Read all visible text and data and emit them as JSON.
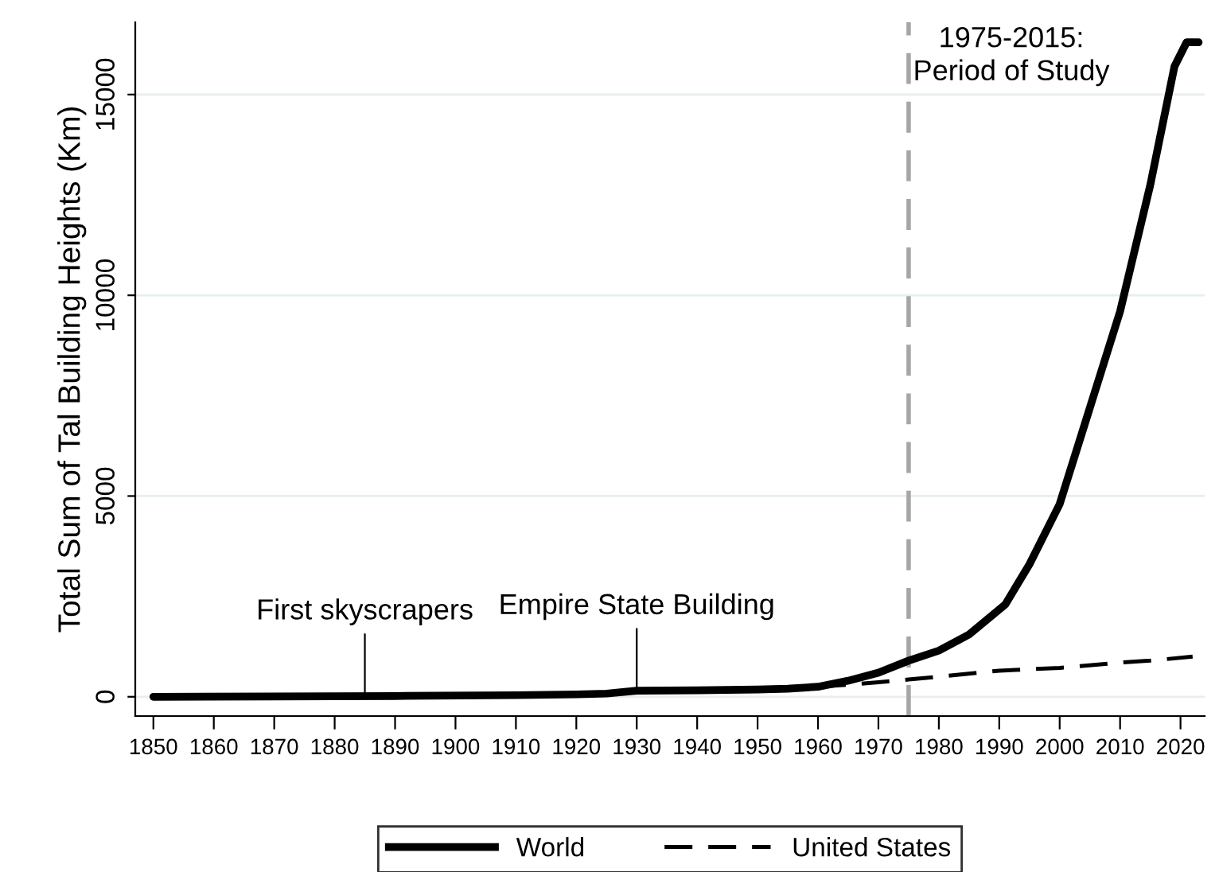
{
  "chart_data": {
    "type": "line",
    "ylabel": "Total Sum of Tal Building Heights (Km)",
    "series": [
      {
        "name": "World",
        "color": "#000000",
        "line_style": "solid",
        "x": [
          1850,
          1870,
          1890,
          1910,
          1920,
          1925,
          1930,
          1940,
          1950,
          1955,
          1960,
          1965,
          1970,
          1975,
          1980,
          1985,
          1991,
          1995,
          2000,
          2005,
          2010,
          2015,
          2019,
          2021,
          2023
        ],
        "values": [
          0,
          10,
          20,
          40,
          60,
          80,
          150,
          160,
          180,
          200,
          250,
          400,
          600,
          900,
          1150,
          1550,
          2300,
          3300,
          4800,
          7200,
          9600,
          12750,
          15700,
          16300,
          16300
        ]
      },
      {
        "name": "United States",
        "color": "#000000",
        "line_style": "dashed",
        "x": [
          1960,
          1965,
          1970,
          1975,
          1980,
          1990,
          2000,
          2010,
          2015,
          2022
        ],
        "values": [
          250,
          300,
          360,
          430,
          500,
          650,
          720,
          850,
          900,
          1000
        ]
      }
    ],
    "xlim": [
      1847,
      2024
    ],
    "ylim": [
      -480,
      16800
    ],
    "xticks": [
      1850,
      1860,
      1870,
      1880,
      1890,
      1900,
      1910,
      1920,
      1930,
      1940,
      1950,
      1960,
      1970,
      1980,
      1990,
      2000,
      2010,
      2020
    ],
    "yticks": [
      0,
      5000,
      10000,
      15000
    ],
    "grid": "y",
    "legend": "bottom",
    "ref_lines": [
      {
        "axis": "x",
        "value": 1975,
        "label": "1975-2015:\nPeriod of Study",
        "color": "#a6a6a6",
        "line_style": "dashed"
      }
    ],
    "annotations": [
      {
        "text": "First skyscrapers",
        "x": 1885,
        "y": 20
      },
      {
        "text": "Empire State Building",
        "x": 1930,
        "y": 150
      }
    ]
  }
}
